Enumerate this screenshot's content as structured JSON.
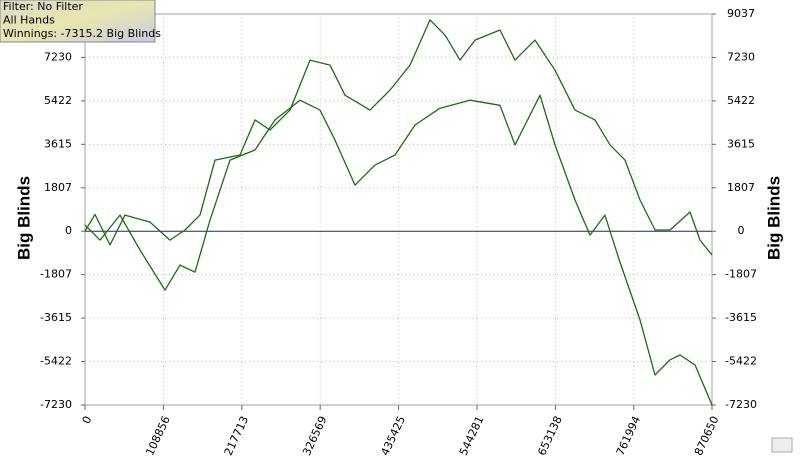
{
  "chart_data": {
    "type": "line",
    "legend_lines": [
      "Filter: No Filter",
      "All Hands",
      "Winnings: -7315.2 Big Blinds"
    ],
    "y_label": "Big Blinds",
    "xlim": [
      0,
      870650
    ],
    "xticks": [
      0,
      108856,
      217713,
      326569,
      435425,
      544281,
      653138,
      761994,
      870650
    ],
    "ylim": [
      -7230,
      9037
    ],
    "yticks": [
      -7230,
      -5422,
      -3615,
      -1807,
      0,
      1807,
      3615,
      5422,
      7230,
      9037
    ],
    "grid": true,
    "series": [
      {
        "color": "#1a6e12",
        "x": [
          0,
          13900,
          34700,
          55500,
          90300,
          118000,
          138900,
          159700,
          180500,
          215200,
          236100,
          256900,
          284700,
          312400,
          340200,
          361000,
          395800,
          423500,
          451300,
          479100,
          499900,
          520700,
          541600,
          576300,
          597100,
          624900,
          652600,
          680400,
          708200,
          729000,
          749800,
          770700,
          791500,
          812300,
          840100,
          854000,
          870650
        ],
        "values": [
          0,
          700,
          -570,
          670,
          380,
          -370,
          50,
          670,
          2960,
          3170,
          4630,
          4210,
          5040,
          7120,
          6910,
          5660,
          5040,
          5870,
          6910,
          8790,
          8160,
          7120,
          7950,
          8370,
          7120,
          7950,
          6700,
          5040,
          4630,
          3590,
          2960,
          1300,
          50,
          50,
          800,
          -370,
          -990
        ]
      },
      {
        "color": "#1a6e12",
        "x": [
          0,
          20800,
          48600,
          76400,
          111100,
          131900,
          152700,
          173600,
          201300,
          236100,
          263800,
          298500,
          326300,
          347100,
          374900,
          402700,
          430400,
          458200,
          492900,
          534600,
          576300,
          597100,
          631800,
          652600,
          680400,
          701200,
          722000,
          742800,
          770700,
          791500,
          812300,
          826200,
          847000,
          870650
        ],
        "values": [
          260,
          -370,
          670,
          -780,
          -2450,
          -1410,
          -1700,
          460,
          2960,
          3380,
          4630,
          5450,
          5040,
          3790,
          1920,
          2750,
          3170,
          4420,
          5120,
          5450,
          5240,
          3590,
          5660,
          3590,
          1300,
          -160,
          670,
          -1280,
          -3690,
          -5980,
          -5350,
          -5150,
          -5560,
          -7230
        ]
      }
    ]
  }
}
